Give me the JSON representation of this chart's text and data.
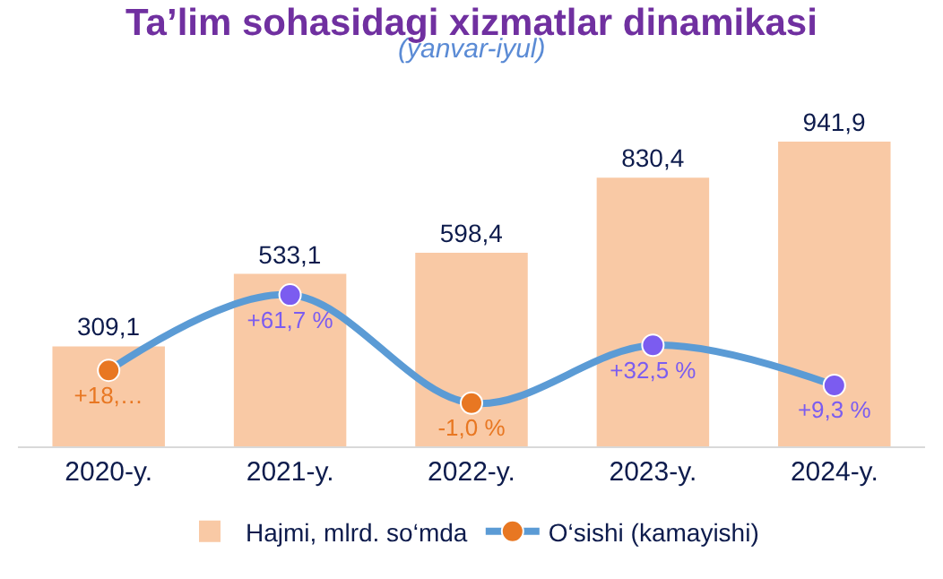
{
  "chart_data": {
    "type": "bar",
    "title": "Ta’lim sohasidagi xizmatlar dinamikasi",
    "subtitle": "(yanvar-iyul)",
    "categories": [
      "2020-y.",
      "2021-y.",
      "2022-y.",
      "2023-y.",
      "2024-y."
    ],
    "series": [
      {
        "name": "Hajmi, mlrd. so‘mda",
        "color": "#f9c9a5",
        "values": [
          309.1,
          533.1,
          598.4,
          830.4,
          941.9
        ],
        "value_labels": [
          "309,1",
          "533,1",
          "598,4",
          "830,4",
          "941,9"
        ]
      },
      {
        "name": "O‘sishi (kamayishi)",
        "type": "line",
        "axis": "y2",
        "color": "#5b9bd5",
        "colors": [
          "#e87722",
          "#7b5cf0",
          "#e87722",
          "#7b5cf0",
          "#7b5cf0"
        ],
        "values": [
          18,
          61.7,
          -1.0,
          32.5,
          9.3
        ],
        "value_labels": [
          "+18,…",
          "+61,7 %",
          "-1,0 %",
          "+32,5 %",
          "+9,3 %"
        ]
      }
    ],
    "legend": "bottom",
    "marker": "circle"
  }
}
